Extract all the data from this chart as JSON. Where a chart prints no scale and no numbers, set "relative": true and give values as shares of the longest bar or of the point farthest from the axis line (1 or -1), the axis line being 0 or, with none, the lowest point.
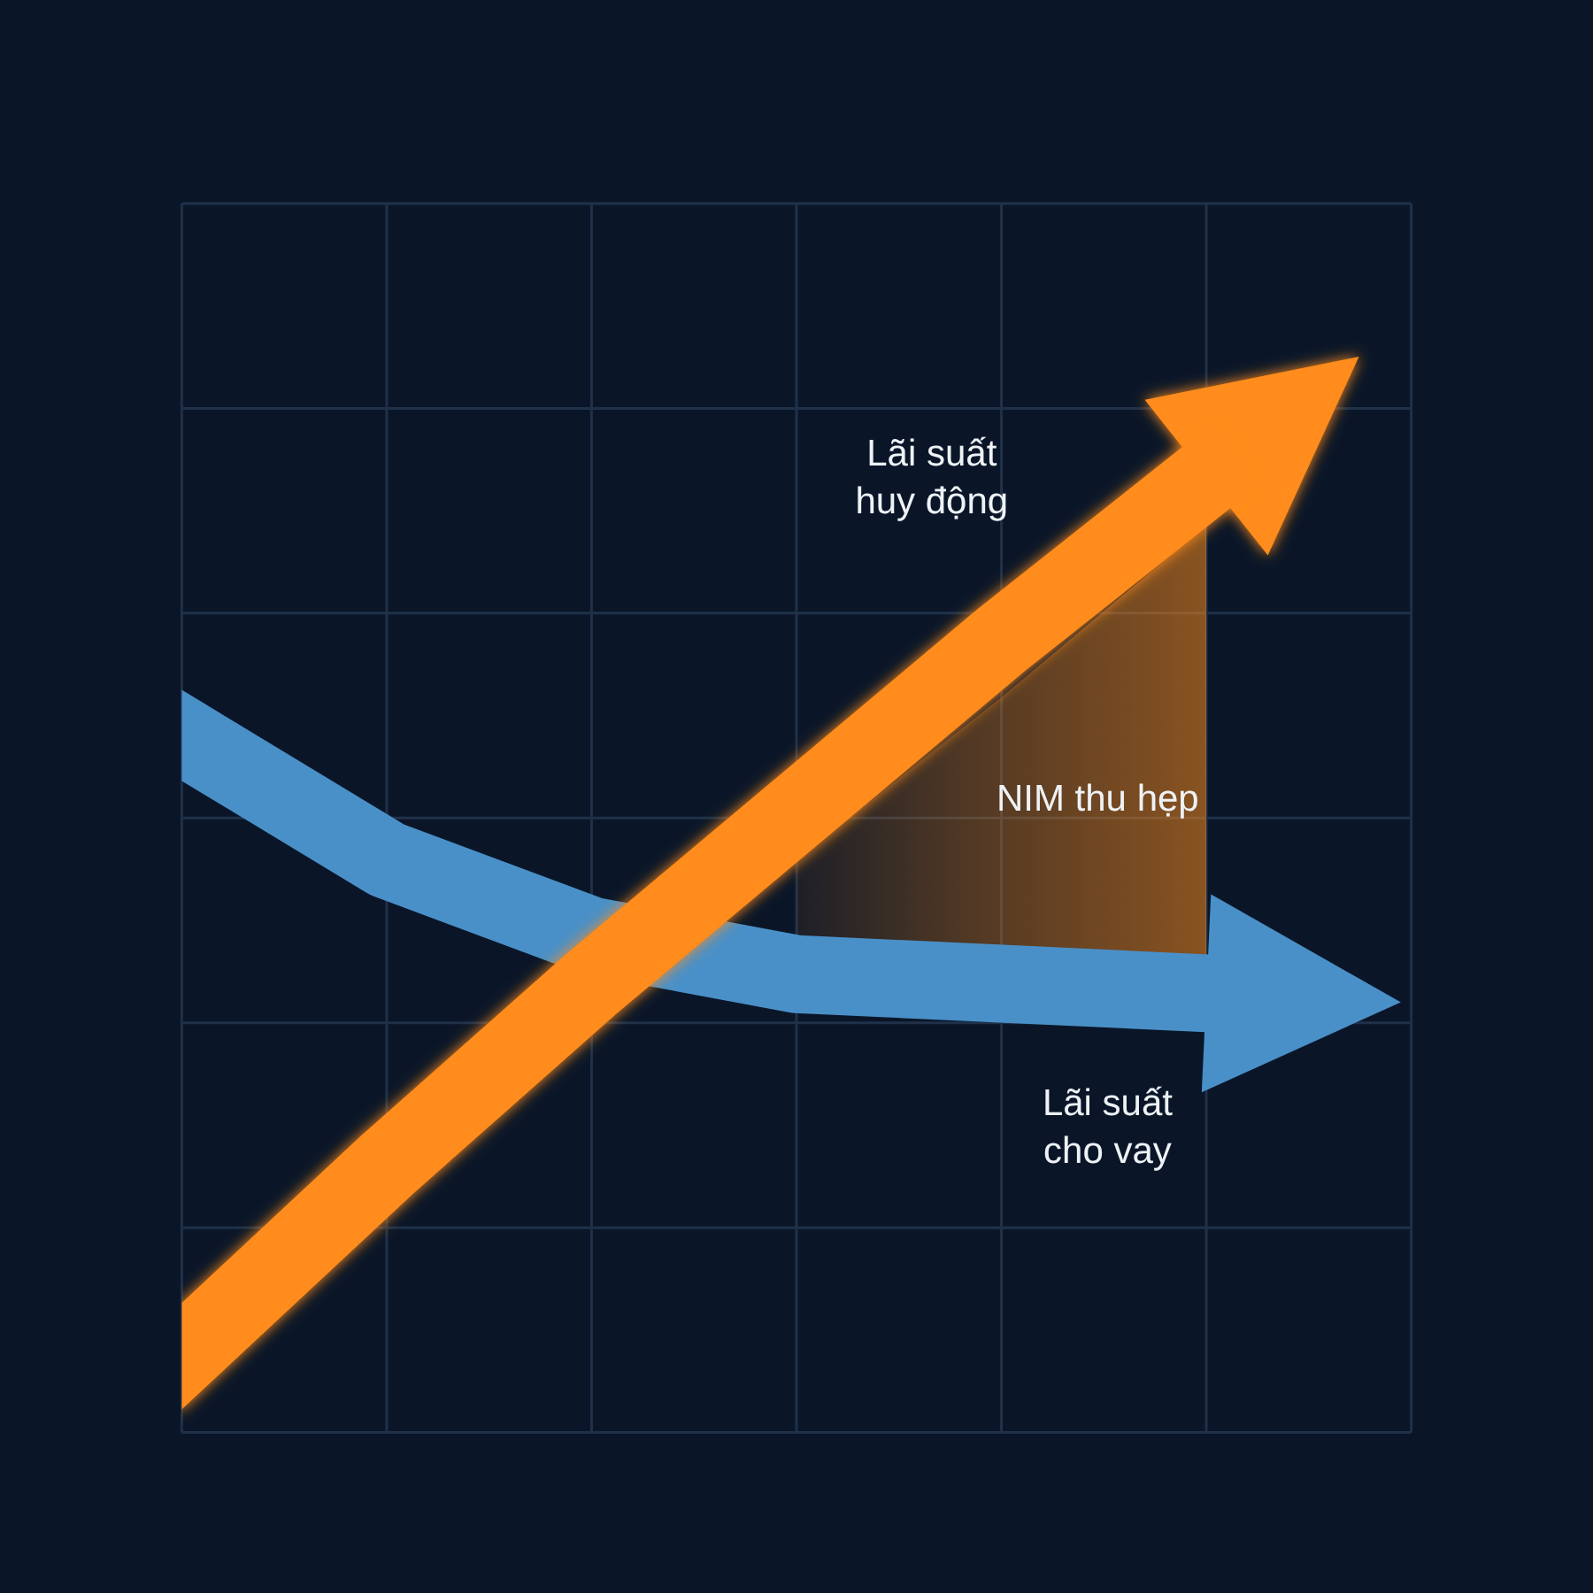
{
  "chart_data": {
    "type": "line",
    "relative": true,
    "categories": [
      null,
      null,
      null,
      null,
      null,
      null,
      null
    ],
    "grid": true,
    "series": [
      {
        "name": "Lãi suất cho vay",
        "color": "#4a90c8",
        "values": [
          0.73,
          0.6,
          0.52,
          0.48,
          0.47,
          0.46,
          null
        ]
      },
      {
        "name": "Lãi suất huy động",
        "color": "#ff8c1a",
        "values": [
          0.08,
          0.28,
          0.47,
          0.65,
          0.83,
          1,
          null
        ],
        "lower": [
          null,
          null,
          null,
          0.52,
          0.51,
          0.5,
          null
        ],
        "upper": [
          null,
          null,
          null,
          0.6,
          0.77,
          0.95,
          null
        ]
      }
    ],
    "annotations": [
      "NIM thu hẹp"
    ]
  }
}
